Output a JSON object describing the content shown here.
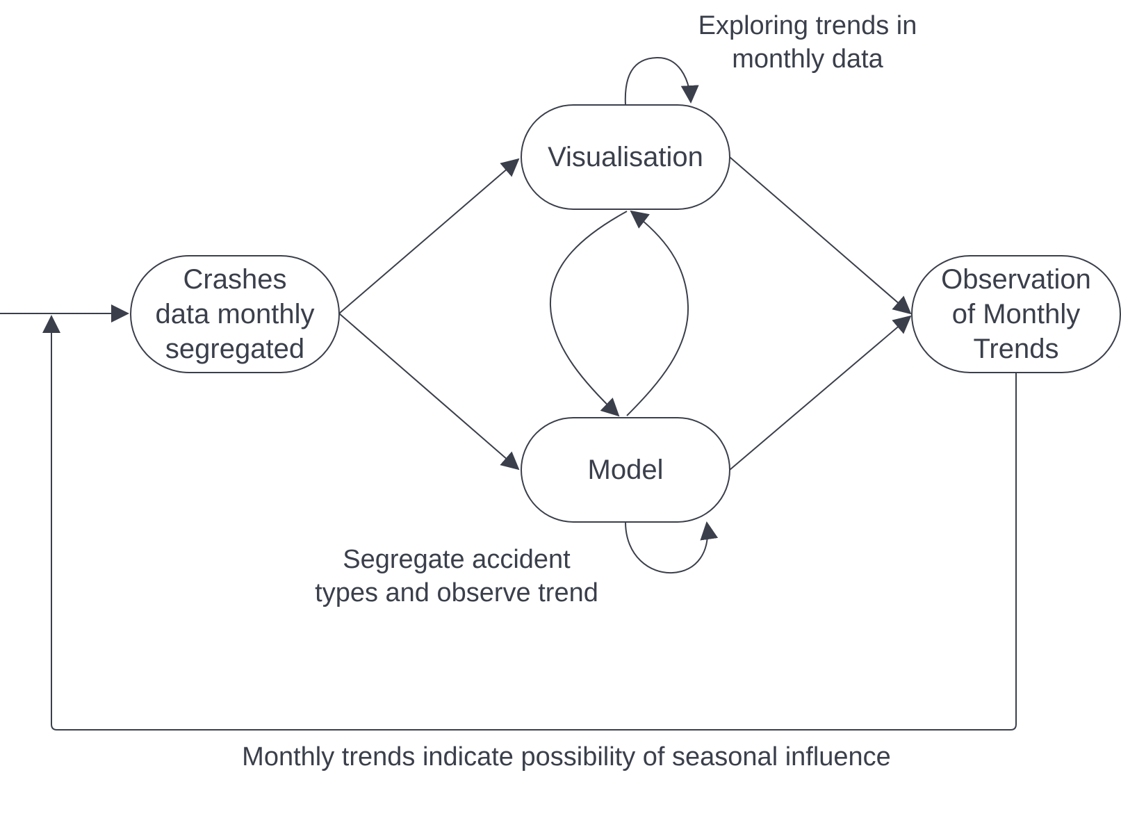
{
  "colors": {
    "stroke": "#3a3f4b",
    "text": "#3a3f4b",
    "background": "#ffffff",
    "node_fill": "#ffffff"
  },
  "nodes": {
    "crashes": {
      "label": "Crashes\ndata monthly\nsegregated"
    },
    "visualisation": {
      "label": "Visualisation"
    },
    "model": {
      "label": "Model"
    },
    "observation": {
      "label": "Observation\nof Monthly\nTrends"
    }
  },
  "annotations": {
    "exploring": "Exploring trends in\nmonthly data",
    "segregate": "Segregate accident\ntypes and observe trend",
    "monthly_trends": "Monthly trends indicate possibility of seasonal influence"
  }
}
